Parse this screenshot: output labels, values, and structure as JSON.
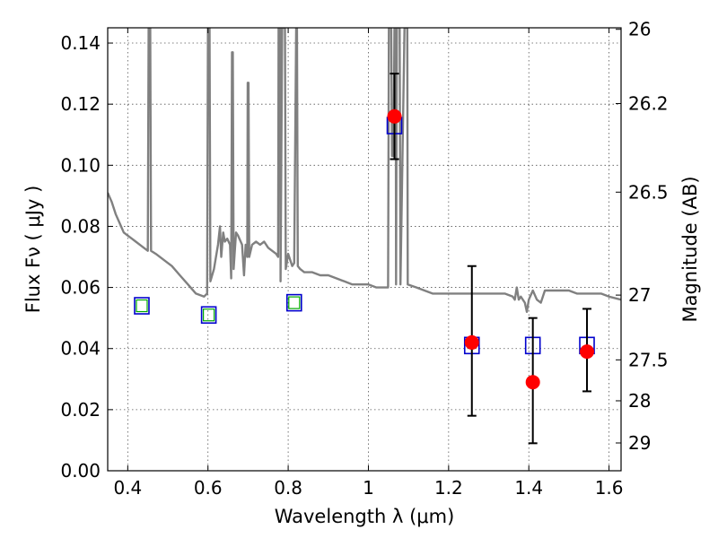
{
  "chart_data": {
    "type": "scatter",
    "xlabel": "Wavelength  λ (μm)",
    "ylabel": "Flux  Fν  ( μJy )",
    "y2label": "Magnitude (AB)",
    "xlim": [
      0.35,
      1.63
    ],
    "ylim": [
      0.0,
      0.145
    ],
    "grid": true,
    "x_ticks": [
      0.4,
      0.6,
      0.8,
      1.0,
      1.2,
      1.4,
      1.6
    ],
    "x_tick_labels": [
      "0.4",
      "0.6",
      "0.8",
      "1",
      "1.2",
      "1.4",
      "1.6"
    ],
    "y_ticks": [
      0.0,
      0.02,
      0.04,
      0.06,
      0.08,
      0.1,
      0.12,
      0.14
    ],
    "y_tick_labels": [
      "0.00",
      "0.02",
      "0.04",
      "0.06",
      "0.08",
      "0.10",
      "0.12",
      "0.14"
    ],
    "y2_ticks": [
      {
        "label": "26",
        "flux": 0.1445
      },
      {
        "label": "26.2",
        "flux": 0.1202
      },
      {
        "label": "26.5",
        "flux": 0.0912
      },
      {
        "label": "27",
        "flux": 0.0575
      },
      {
        "label": "27.5",
        "flux": 0.0363
      },
      {
        "label": "28",
        "flux": 0.0229
      },
      {
        "label": "29",
        "flux": 0.0091
      }
    ],
    "colors": {
      "model": "#808080",
      "observed": "#ff0000",
      "model_photometry": "#0000cc",
      "inner_square": "#00aa00",
      "error_bar": "#000000"
    },
    "series": [
      {
        "type": "line",
        "points": [
          [
            0.35,
            0.091
          ],
          [
            0.36,
            0.088
          ],
          [
            0.37,
            0.084
          ],
          [
            0.38,
            0.081
          ],
          [
            0.39,
            0.078
          ],
          [
            0.4,
            0.077
          ],
          [
            0.41,
            0.076
          ],
          [
            0.42,
            0.075
          ],
          [
            0.43,
            0.074
          ],
          [
            0.44,
            0.073
          ],
          [
            0.45,
            0.072
          ],
          [
            0.452,
            0.145
          ],
          [
            0.456,
            0.145
          ],
          [
            0.458,
            0.072
          ],
          [
            0.47,
            0.071
          ],
          [
            0.49,
            0.069
          ],
          [
            0.51,
            0.067
          ],
          [
            0.53,
            0.064
          ],
          [
            0.55,
            0.061
          ],
          [
            0.57,
            0.058
          ],
          [
            0.59,
            0.057
          ],
          [
            0.598,
            0.058
          ],
          [
            0.6,
            0.145
          ],
          [
            0.604,
            0.145
          ],
          [
            0.606,
            0.062
          ],
          [
            0.615,
            0.066
          ],
          [
            0.625,
            0.074
          ],
          [
            0.63,
            0.08
          ],
          [
            0.633,
            0.07
          ],
          [
            0.638,
            0.078
          ],
          [
            0.642,
            0.075
          ],
          [
            0.648,
            0.076
          ],
          [
            0.655,
            0.074
          ],
          [
            0.658,
            0.063
          ],
          [
            0.66,
            0.137
          ],
          [
            0.662,
            0.137
          ],
          [
            0.664,
            0.066
          ],
          [
            0.67,
            0.078
          ],
          [
            0.675,
            0.077
          ],
          [
            0.685,
            0.074
          ],
          [
            0.69,
            0.064
          ],
          [
            0.694,
            0.074
          ],
          [
            0.698,
            0.07
          ],
          [
            0.699,
            0.127
          ],
          [
            0.701,
            0.127
          ],
          [
            0.703,
            0.07
          ],
          [
            0.71,
            0.074
          ],
          [
            0.72,
            0.075
          ],
          [
            0.73,
            0.074
          ],
          [
            0.74,
            0.075
          ],
          [
            0.75,
            0.073
          ],
          [
            0.76,
            0.072
          ],
          [
            0.77,
            0.071
          ],
          [
            0.775,
            0.07
          ],
          [
            0.776,
            0.145
          ],
          [
            0.78,
            0.145
          ],
          [
            0.781,
            0.062
          ],
          [
            0.785,
            0.145
          ],
          [
            0.792,
            0.145
          ],
          [
            0.794,
            0.066
          ],
          [
            0.8,
            0.071
          ],
          [
            0.81,
            0.067
          ],
          [
            0.815,
            0.068
          ],
          [
            0.82,
            0.145
          ],
          [
            0.822,
            0.145
          ],
          [
            0.824,
            0.067
          ],
          [
            0.83,
            0.066
          ],
          [
            0.84,
            0.065
          ],
          [
            0.86,
            0.065
          ],
          [
            0.88,
            0.064
          ],
          [
            0.9,
            0.064
          ],
          [
            0.92,
            0.063
          ],
          [
            0.94,
            0.062
          ],
          [
            0.96,
            0.061
          ],
          [
            0.98,
            0.061
          ],
          [
            1.0,
            0.061
          ],
          [
            1.02,
            0.06
          ],
          [
            1.04,
            0.06
          ],
          [
            1.049,
            0.06
          ],
          [
            1.051,
            0.145
          ],
          [
            1.057,
            0.145
          ],
          [
            1.059,
            0.103
          ],
          [
            1.063,
            0.103
          ],
          [
            1.065,
            0.145
          ],
          [
            1.068,
            0.145
          ],
          [
            1.069,
            0.061
          ],
          [
            1.071,
            0.145
          ],
          [
            1.078,
            0.145
          ],
          [
            1.08,
            0.061
          ],
          [
            1.09,
            0.145
          ],
          [
            1.097,
            0.145
          ],
          [
            1.098,
            0.061
          ],
          [
            1.12,
            0.06
          ],
          [
            1.14,
            0.059
          ],
          [
            1.16,
            0.058
          ],
          [
            1.18,
            0.058
          ],
          [
            1.2,
            0.058
          ],
          [
            1.22,
            0.058
          ],
          [
            1.24,
            0.058
          ],
          [
            1.26,
            0.058
          ],
          [
            1.28,
            0.058
          ],
          [
            1.3,
            0.058
          ],
          [
            1.32,
            0.058
          ],
          [
            1.34,
            0.058
          ],
          [
            1.36,
            0.057
          ],
          [
            1.365,
            0.056
          ],
          [
            1.37,
            0.06
          ],
          [
            1.375,
            0.056
          ],
          [
            1.38,
            0.057
          ],
          [
            1.39,
            0.055
          ],
          [
            1.395,
            0.052
          ],
          [
            1.4,
            0.056
          ],
          [
            1.41,
            0.059
          ],
          [
            1.42,
            0.056
          ],
          [
            1.43,
            0.055
          ],
          [
            1.44,
            0.059
          ],
          [
            1.46,
            0.059
          ],
          [
            1.48,
            0.059
          ],
          [
            1.5,
            0.059
          ],
          [
            1.52,
            0.058
          ],
          [
            1.54,
            0.058
          ],
          [
            1.56,
            0.058
          ],
          [
            1.58,
            0.058
          ],
          [
            1.6,
            0.057
          ],
          [
            1.63,
            0.056
          ]
        ]
      },
      {
        "type": "square",
        "points": [
          [
            0.435,
            0.054
          ],
          [
            0.602,
            0.051
          ],
          [
            0.815,
            0.055
          ],
          [
            1.065,
            0.113
          ],
          [
            1.258,
            0.041
          ],
          [
            1.41,
            0.041
          ],
          [
            1.545,
            0.041
          ]
        ]
      },
      {
        "type": "inner_square",
        "points": [
          [
            0.435,
            0.054
          ],
          [
            0.602,
            0.051
          ],
          [
            0.815,
            0.055
          ]
        ]
      },
      {
        "type": "errorbar",
        "points": [
          {
            "x": 1.065,
            "y": 0.116,
            "ylow": 0.102,
            "yhigh": 0.13
          },
          {
            "x": 1.258,
            "y": 0.042,
            "ylow": 0.018,
            "yhigh": 0.067
          },
          {
            "x": 1.41,
            "y": 0.029,
            "ylow": 0.009,
            "yhigh": 0.05
          },
          {
            "x": 1.545,
            "y": 0.039,
            "ylow": 0.026,
            "yhigh": 0.053
          }
        ]
      }
    ]
  }
}
